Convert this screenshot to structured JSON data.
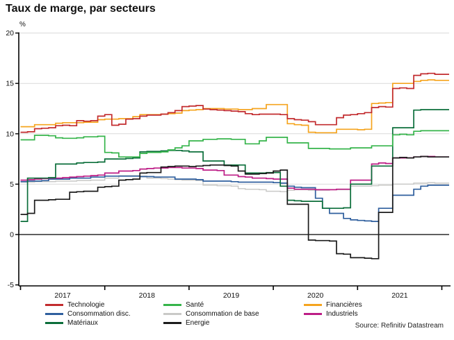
{
  "title": "Taux de marge, par secteurs",
  "source": "Source: Refinitiv Datastream",
  "chart_data": {
    "type": "line",
    "interpolation": "step-after",
    "title": "Taux de marge, par secteurs",
    "xlabel": "",
    "ylabel": "%",
    "unit_label": "%",
    "x_start": "2017-01",
    "x_end": "2021-12",
    "x_frequency": "monthly",
    "x_tick_labels": [
      "2017",
      "2018",
      "2019",
      "2020",
      "2021"
    ],
    "y_tick_labels": [
      "20",
      "15",
      "10",
      "5",
      "0",
      "-5"
    ],
    "y_ticks": [
      20,
      15,
      10,
      5,
      0,
      -5
    ],
    "y_gridlines": [
      20,
      15,
      10,
      5
    ],
    "ylim": [
      -5,
      20
    ],
    "grid": "horizontal-light",
    "legend_position": "bottom",
    "zero_line": true,
    "series": [
      {
        "name": "Consommation de base",
        "color": "#c9c9c7",
        "width": 1.5,
        "values": [
          5.2,
          5.2,
          5.25,
          5.25,
          5.25,
          5.3,
          5.3,
          5.3,
          5.35,
          5.35,
          5.4,
          5.4,
          5.6,
          5.6,
          5.85,
          5.85,
          5.85,
          5.8,
          5.6,
          5.6,
          5.55,
          5.5,
          5.45,
          5.4,
          5.4,
          5.35,
          4.9,
          4.9,
          4.85,
          4.85,
          4.8,
          4.55,
          4.5,
          4.5,
          4.45,
          4.3,
          4.3,
          4.25,
          4.4,
          4.45,
          4.45,
          4.4,
          4.4,
          4.4,
          4.45,
          4.45,
          4.45,
          4.8,
          4.8,
          4.8,
          4.85,
          4.9,
          4.9,
          5.0,
          5.0,
          5.0,
          5.1,
          5.1,
          5.15,
          5.1
        ]
      },
      {
        "name": "Consommation disc.",
        "color": "#2f5f9e",
        "width": 1.7,
        "values": [
          5.25,
          5.3,
          5.3,
          5.35,
          5.5,
          5.5,
          5.5,
          5.6,
          5.6,
          5.6,
          5.7,
          5.7,
          5.8,
          5.8,
          5.8,
          5.8,
          5.8,
          5.75,
          5.75,
          5.7,
          5.7,
          5.7,
          5.5,
          5.5,
          5.5,
          5.45,
          5.3,
          5.3,
          5.3,
          5.3,
          5.25,
          5.2,
          5.2,
          5.2,
          5.2,
          5.2,
          5.15,
          5.1,
          4.8,
          4.7,
          4.65,
          4.65,
          3.6,
          2.6,
          2.1,
          2.1,
          1.6,
          1.45,
          1.4,
          1.35,
          1.3,
          2.6,
          2.6,
          3.9,
          3.9,
          3.9,
          4.5,
          4.8,
          4.9,
          4.9
        ]
      },
      {
        "name": "Industriels",
        "color": "#bd1d86",
        "width": 1.7,
        "values": [
          5.4,
          5.45,
          5.5,
          5.55,
          5.6,
          5.6,
          5.65,
          5.7,
          5.75,
          5.8,
          5.85,
          5.9,
          6.1,
          6.1,
          6.3,
          6.3,
          6.35,
          6.5,
          6.55,
          6.6,
          6.6,
          6.65,
          6.65,
          6.6,
          6.6,
          6.55,
          6.4,
          6.4,
          6.35,
          5.9,
          5.9,
          5.75,
          5.7,
          5.6,
          5.6,
          5.55,
          5.5,
          5.5,
          4.6,
          4.5,
          4.5,
          4.5,
          4.45,
          4.45,
          4.45,
          4.5,
          4.5,
          5.4,
          5.4,
          5.4,
          7.0,
          7.1,
          7.05,
          7.6,
          7.6,
          7.6,
          7.7,
          7.75,
          7.75,
          7.7
        ]
      },
      {
        "name": "Matériaux",
        "color": "#0b6e3a",
        "width": 1.7,
        "values": [
          1.3,
          5.6,
          5.6,
          5.6,
          5.65,
          7.0,
          7.0,
          7.0,
          7.1,
          7.15,
          7.15,
          7.2,
          7.5,
          7.5,
          7.5,
          7.55,
          7.6,
          8.2,
          8.25,
          8.25,
          8.3,
          8.35,
          8.35,
          8.3,
          8.2,
          8.2,
          7.3,
          7.3,
          7.3,
          6.9,
          6.9,
          6.9,
          6.1,
          6.1,
          6.1,
          6.15,
          6.15,
          4.8,
          3.4,
          3.35,
          3.3,
          3.3,
          3.3,
          2.6,
          2.6,
          2.6,
          2.65,
          5.0,
          5.0,
          5.0,
          6.8,
          6.8,
          6.8,
          10.6,
          10.6,
          10.6,
          12.35,
          12.4,
          12.4,
          12.4
        ]
      },
      {
        "name": "Santé",
        "color": "#35b44a",
        "width": 1.7,
        "values": [
          9.4,
          9.4,
          9.85,
          9.85,
          9.8,
          9.6,
          9.55,
          9.55,
          9.6,
          9.7,
          9.7,
          9.75,
          8.15,
          8.1,
          7.7,
          7.7,
          7.7,
          8.05,
          8.15,
          8.15,
          8.2,
          8.4,
          8.6,
          8.8,
          9.3,
          9.3,
          9.45,
          9.45,
          9.5,
          9.5,
          9.45,
          9.45,
          9.0,
          9.0,
          9.3,
          9.65,
          9.65,
          9.65,
          9.1,
          9.1,
          9.1,
          8.55,
          8.55,
          8.55,
          8.5,
          8.5,
          8.5,
          8.6,
          8.6,
          8.6,
          8.8,
          8.8,
          8.8,
          9.9,
          9.95,
          9.9,
          10.25,
          10.3,
          10.3,
          10.3
        ]
      },
      {
        "name": "Energie",
        "color": "#1b1b1b",
        "width": 1.7,
        "values": [
          2.0,
          2.1,
          3.4,
          3.4,
          3.45,
          3.5,
          3.5,
          4.2,
          4.25,
          4.3,
          4.3,
          4.7,
          4.75,
          4.8,
          5.4,
          5.45,
          5.5,
          6.1,
          6.15,
          6.15,
          6.7,
          6.75,
          6.8,
          6.8,
          6.75,
          6.8,
          6.85,
          6.9,
          6.9,
          6.85,
          6.8,
          6.3,
          6.0,
          6.0,
          6.05,
          6.1,
          6.3,
          6.4,
          3.0,
          3.0,
          3.0,
          -0.55,
          -0.6,
          -0.6,
          -0.65,
          -1.9,
          -1.95,
          -2.3,
          -2.3,
          -2.35,
          -2.4,
          2.2,
          2.2,
          7.6,
          7.65,
          7.6,
          7.7,
          7.75,
          7.7,
          7.7
        ]
      },
      {
        "name": "Financières",
        "color": "#f5a41e",
        "width": 1.7,
        "values": [
          10.7,
          10.7,
          10.9,
          10.9,
          10.9,
          11.05,
          11.1,
          11.1,
          11.1,
          11.15,
          11.15,
          11.4,
          11.45,
          11.45,
          11.5,
          11.5,
          11.7,
          11.9,
          11.9,
          11.9,
          11.95,
          12.0,
          12.05,
          12.3,
          12.35,
          12.4,
          12.5,
          12.5,
          12.5,
          12.45,
          12.45,
          12.4,
          12.4,
          12.5,
          12.5,
          12.9,
          12.9,
          12.9,
          11.0,
          10.9,
          10.85,
          10.15,
          10.1,
          10.1,
          10.1,
          10.45,
          10.45,
          10.45,
          10.4,
          10.45,
          13.0,
          13.05,
          13.1,
          15.0,
          15.0,
          15.0,
          15.2,
          15.3,
          15.35,
          15.3
        ]
      },
      {
        "name": "Technologie",
        "color": "#c22b2e",
        "width": 1.7,
        "values": [
          10.15,
          10.2,
          10.5,
          10.55,
          10.6,
          10.8,
          10.85,
          10.8,
          11.3,
          11.25,
          11.3,
          11.75,
          11.9,
          10.85,
          10.95,
          11.45,
          11.5,
          11.75,
          11.85,
          11.85,
          11.95,
          12.1,
          12.3,
          12.7,
          12.75,
          12.8,
          12.45,
          12.4,
          12.35,
          12.3,
          12.25,
          12.2,
          12.0,
          11.9,
          11.95,
          11.95,
          11.95,
          11.9,
          11.5,
          11.4,
          11.35,
          11.2,
          10.9,
          10.9,
          10.9,
          11.6,
          11.85,
          11.9,
          12.0,
          12.1,
          12.6,
          12.7,
          12.65,
          14.5,
          14.55,
          14.5,
          15.8,
          15.95,
          16.0,
          15.9
        ]
      }
    ],
    "legend_columns": [
      [
        "Technologie",
        "Consommation disc.",
        "Matériaux"
      ],
      [
        "Santé",
        "Consommation de base",
        "Energie"
      ],
      [
        "Financières",
        "Industriels"
      ]
    ]
  },
  "colors": {
    "grid": "#d9d9d9",
    "axis": "#000000",
    "text": "#111111"
  }
}
